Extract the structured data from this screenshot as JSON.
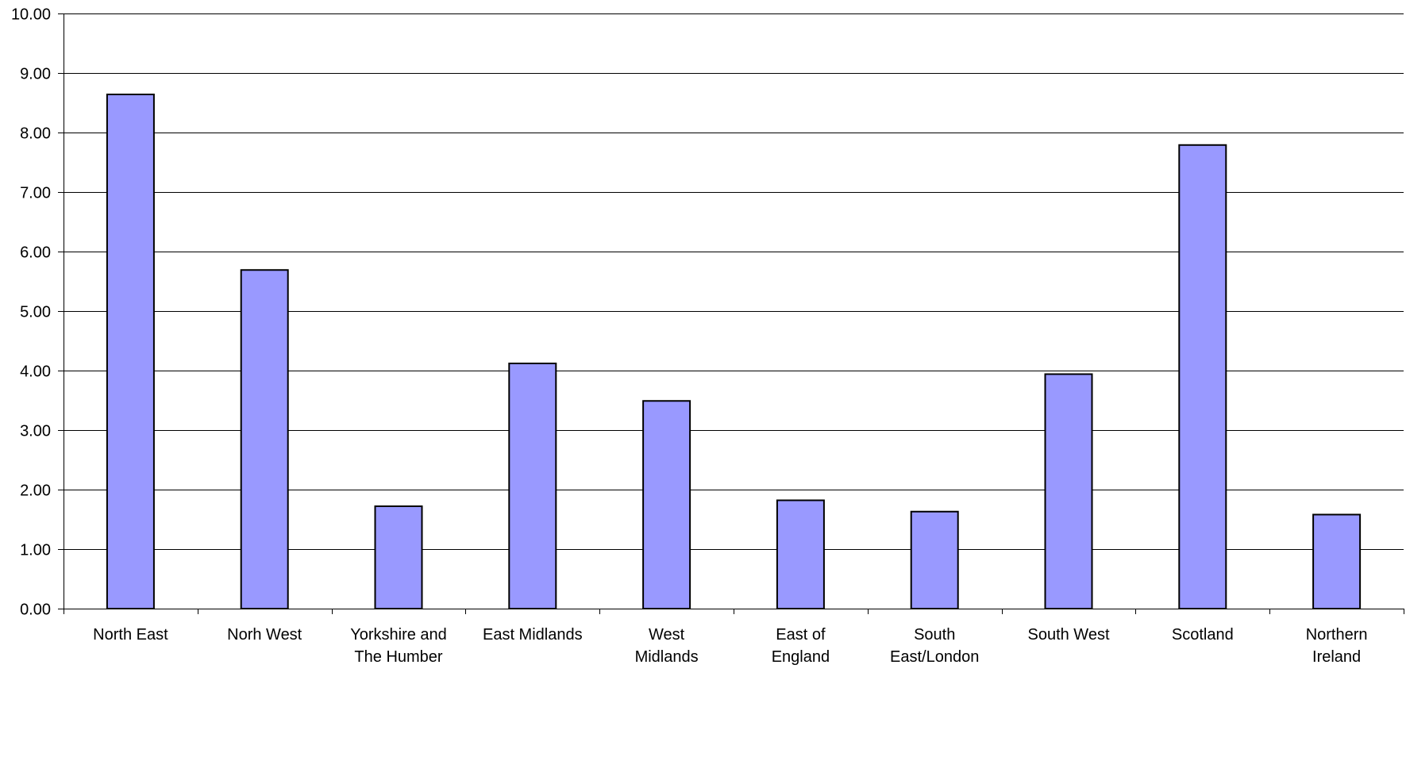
{
  "chart_data": {
    "type": "bar",
    "title": "",
    "xlabel": "",
    "ylabel": "",
    "ylim": [
      0,
      10
    ],
    "y_ticks": [
      "0.00",
      "1.00",
      "2.00",
      "3.00",
      "4.00",
      "5.00",
      "6.00",
      "7.00",
      "8.00",
      "9.00",
      "10.00"
    ],
    "grid": true,
    "categories": [
      [
        "North East"
      ],
      [
        "Norh West"
      ],
      [
        "Yorkshire and",
        "The Humber"
      ],
      [
        "East Midlands"
      ],
      [
        "West",
        "Midlands"
      ],
      [
        "East of",
        "England"
      ],
      [
        "South",
        "East/London"
      ],
      [
        "South West"
      ],
      [
        "Scotland"
      ],
      [
        "Northern",
        "Ireland"
      ]
    ],
    "values": [
      8.64,
      5.69,
      1.72,
      4.12,
      3.49,
      1.82,
      1.63,
      3.94,
      7.79,
      1.58
    ],
    "colors": {
      "bar_fill": "#9999ff",
      "bar_stroke": "#000000",
      "grid": "#000000",
      "axis": "#000000"
    }
  }
}
